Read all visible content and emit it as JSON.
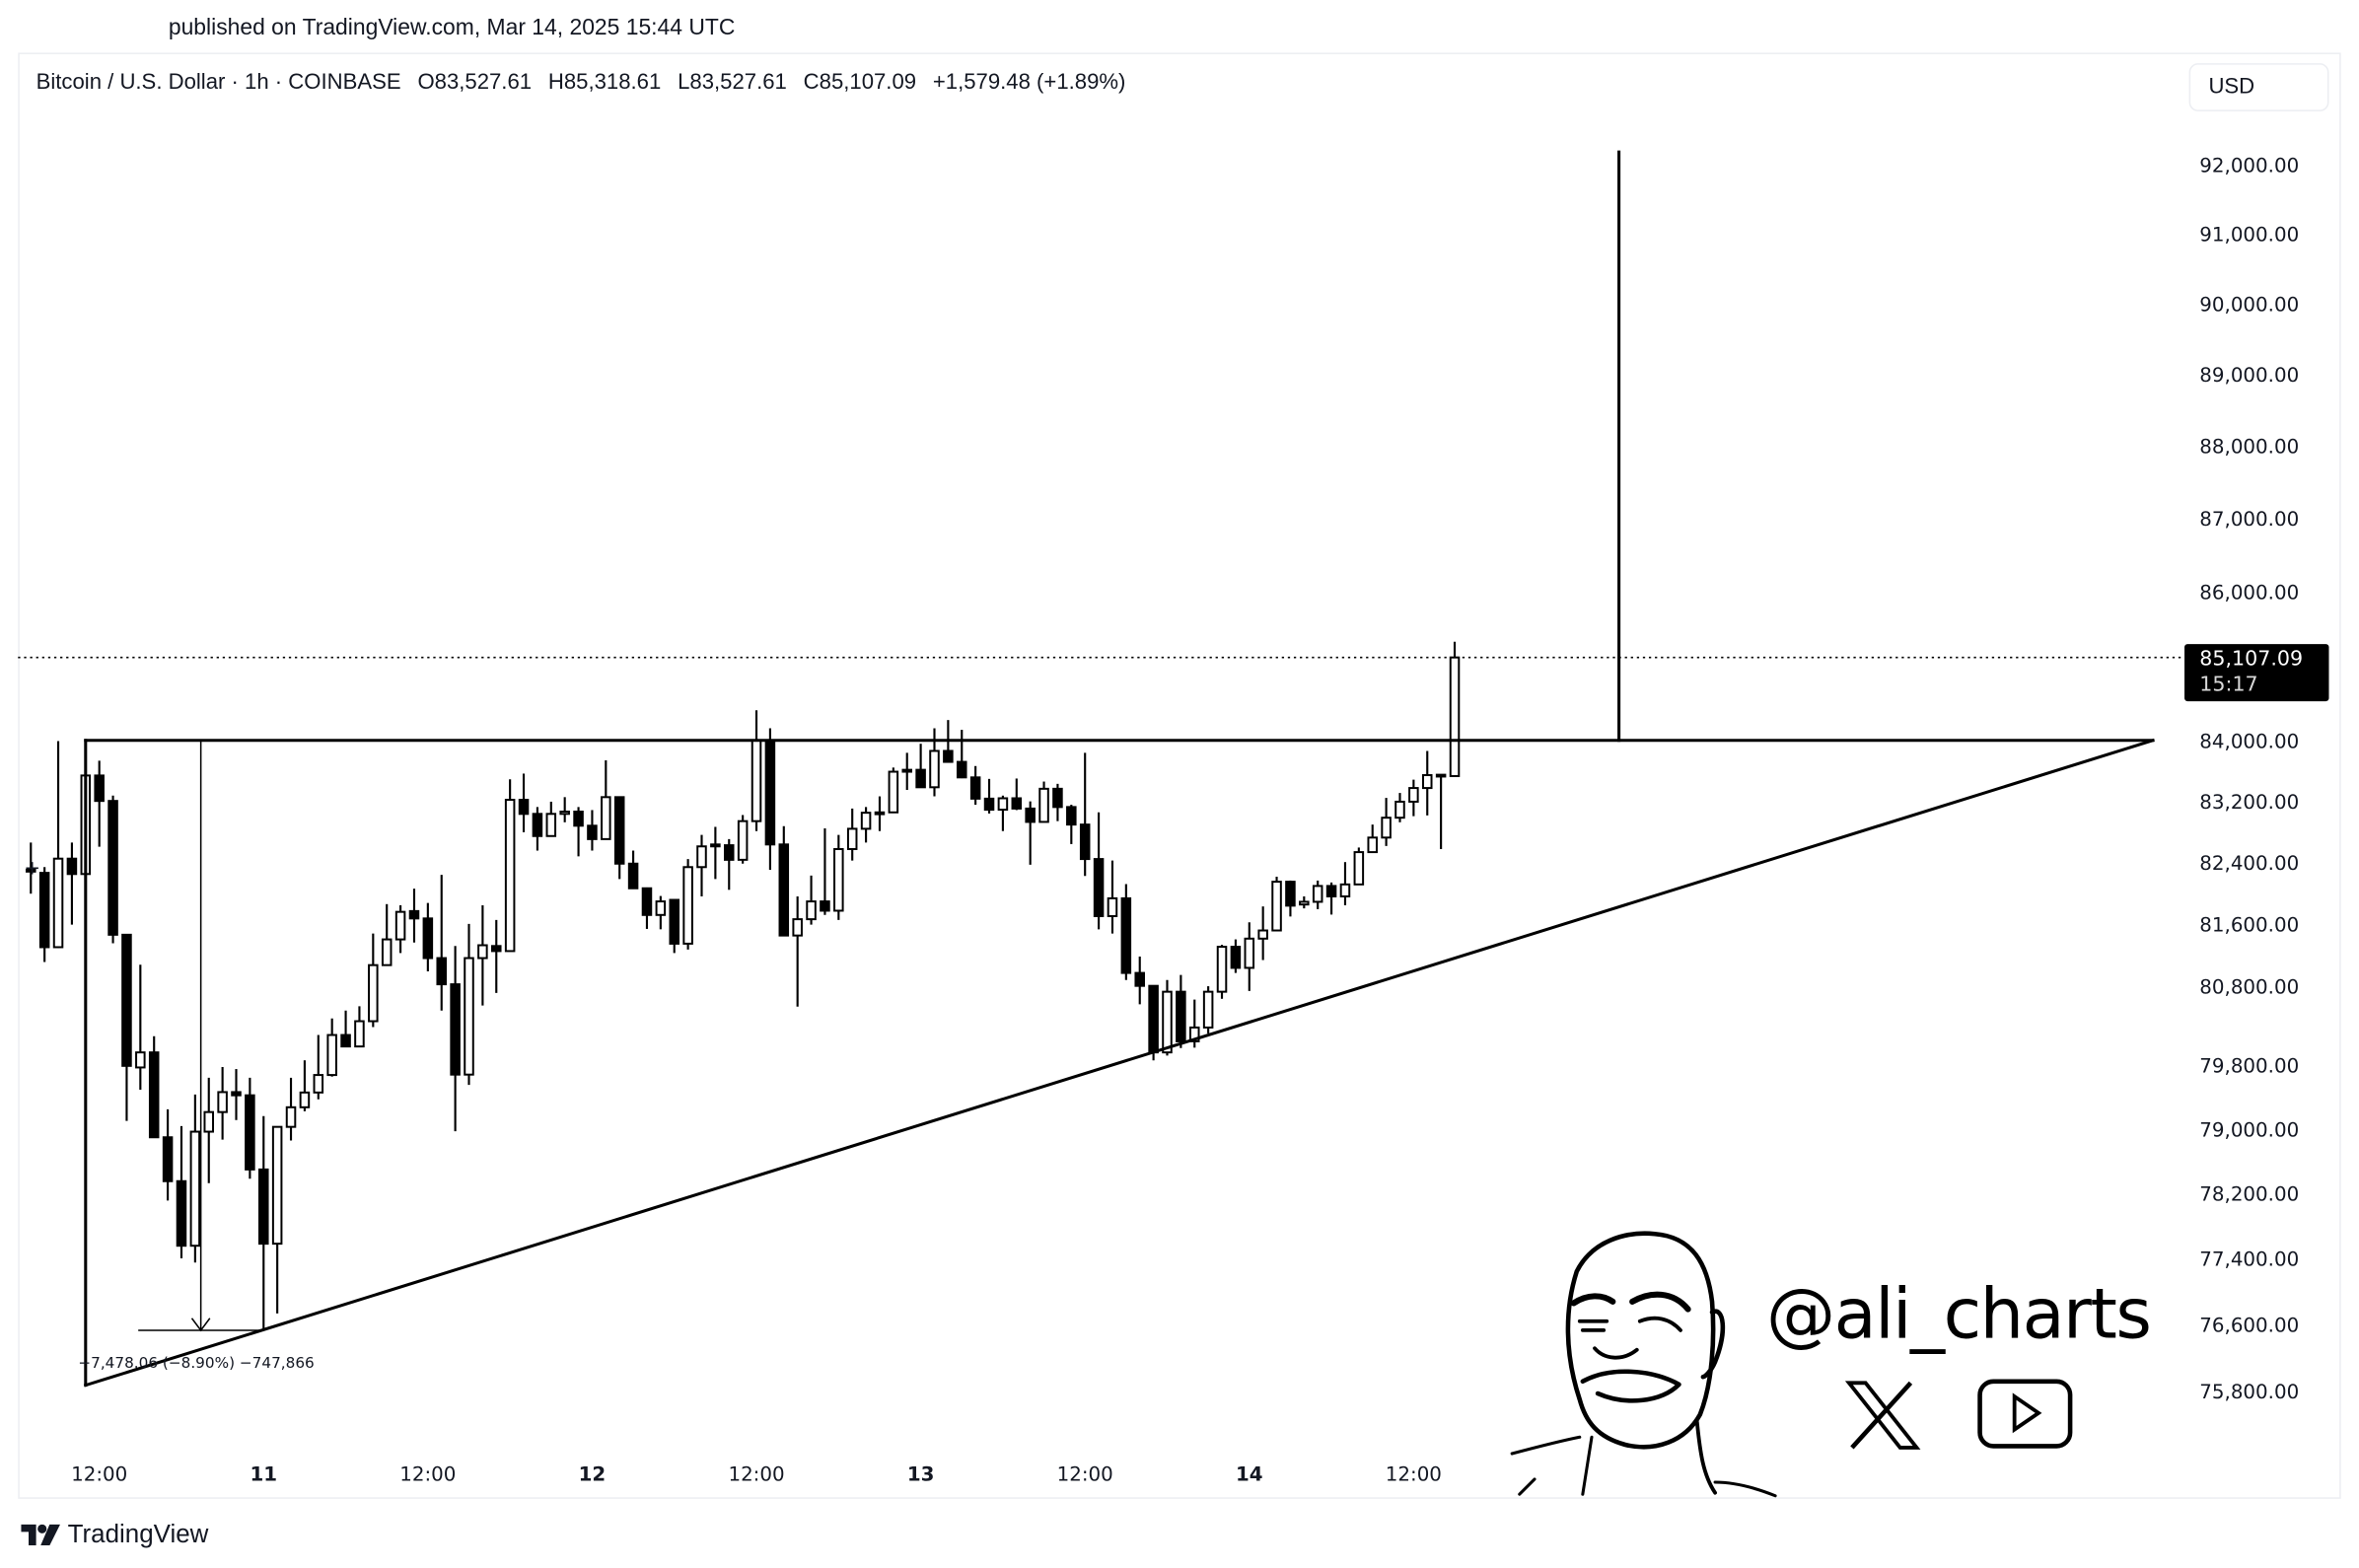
{
  "published": "published on TradingView.com, Mar 14, 2025 15:44 UTC",
  "legend": {
    "symbol": "Bitcoin / U.S. Dollar · 1h · COINBASE",
    "open": "O83,527.61",
    "high": "H85,318.61",
    "low": "L83,527.61",
    "close": "C85,107.09",
    "change": "+1,579.48 (+1.89%)"
  },
  "currency_button": "USD",
  "last_price": {
    "value": "85,107.09",
    "countdown": "15:17"
  },
  "measure_label": "−7,478.06 (−8.90%) −747,866",
  "watermark": {
    "handle": "@ali_charts",
    "icons": [
      "cartoon-face",
      "x-logo-icon",
      "youtube-play-icon"
    ]
  },
  "footer_logo": "TradingView",
  "chart_data": {
    "type": "candlestick",
    "interval": "1h",
    "y_scale": "log",
    "ylim": [
      74500,
      93600
    ],
    "xlim": [
      "Mar 10 06:00",
      "Mar 16 20:00"
    ],
    "grid": false,
    "colors": {
      "up_fill": "#ffffff",
      "down_fill": "#000000",
      "wick": "#000000",
      "drawings": "#000000",
      "last_price_label": "#000000"
    },
    "y_ticks": [
      92000,
      91000,
      90000,
      89000,
      88000,
      87000,
      86000,
      84000,
      83200,
      82400,
      81600,
      80800,
      79800,
      79000,
      78200,
      77400,
      76600,
      75800
    ],
    "y_tick_labels": [
      "92,000.00",
      "91,000.00",
      "90,000.00",
      "89,000.00",
      "88,000.00",
      "87,000.00",
      "86,000.00",
      "84,000.00",
      "83,200.00",
      "82,400.00",
      "81,600.00",
      "80,800.00",
      "79,800.00",
      "79,000.00",
      "78,200.00",
      "77,400.00",
      "76,600.00",
      "75,800.00"
    ],
    "x_ticks": [
      {
        "t": "Mar 10 12:00",
        "label": "12:00",
        "day": false
      },
      {
        "t": "Mar 11 00:00",
        "label": "11",
        "day": true
      },
      {
        "t": "Mar 11 12:00",
        "label": "12:00",
        "day": false
      },
      {
        "t": "Mar 12 00:00",
        "label": "12",
        "day": true
      },
      {
        "t": "Mar 12 12:00",
        "label": "12:00",
        "day": false
      },
      {
        "t": "Mar 13 00:00",
        "label": "13",
        "day": true
      },
      {
        "t": "Mar 13 12:00",
        "label": "12:00",
        "day": false
      },
      {
        "t": "Mar 14 00:00",
        "label": "14",
        "day": true
      },
      {
        "t": "Mar 14 12:00",
        "label": "12:00",
        "day": false
      }
    ],
    "first_bar_time": "Mar 10 07:00",
    "candles_ohlc": [
      [
        82280,
        82655,
        81990,
        82300
      ],
      [
        82260,
        82335,
        81110,
        81300
      ],
      [
        81300,
        83990,
        81290,
        82445
      ],
      [
        82445,
        82655,
        81590,
        82245
      ],
      [
        82245,
        83535,
        82245,
        83535
      ],
      [
        83535,
        83730,
        82600,
        83200
      ],
      [
        83200,
        83270,
        81350,
        81460
      ],
      [
        81460,
        81460,
        79100,
        79790
      ],
      [
        79770,
        81075,
        79490,
        79960
      ],
      [
        79960,
        80165,
        78895,
        78895
      ],
      [
        78895,
        79245,
        78110,
        78350
      ],
      [
        78350,
        79035,
        77400,
        77555
      ],
      [
        77555,
        79430,
        77350,
        78965
      ],
      [
        78965,
        79640,
        78325,
        79210
      ],
      [
        79210,
        79775,
        78865,
        79460
      ],
      [
        79460,
        79750,
        79110,
        79420
      ],
      [
        79420,
        79640,
        78380,
        78495
      ],
      [
        78495,
        79160,
        76550,
        77580
      ],
      [
        77580,
        79025,
        76730,
        79025
      ],
      [
        79025,
        79640,
        78855,
        79270
      ],
      [
        79270,
        79860,
        79220,
        79455
      ],
      [
        79455,
        80180,
        79370,
        79675
      ],
      [
        79675,
        80390,
        79655,
        80180
      ],
      [
        80180,
        80490,
        80035,
        80035
      ],
      [
        80035,
        80545,
        80030,
        80355
      ],
      [
        80355,
        81475,
        80280,
        81070
      ],
      [
        81070,
        81855,
        81070,
        81400
      ],
      [
        81400,
        81840,
        81225,
        81755
      ],
      [
        81765,
        82055,
        81360,
        81670
      ],
      [
        81670,
        81870,
        80990,
        81160
      ],
      [
        81160,
        82235,
        80490,
        80825
      ],
      [
        80825,
        81315,
        78970,
        79680
      ],
      [
        79680,
        81600,
        79550,
        81160
      ],
      [
        81160,
        81840,
        80555,
        81325
      ],
      [
        81315,
        81650,
        80715,
        81250
      ],
      [
        81250,
        83485,
        81250,
        83215
      ],
      [
        83215,
        83560,
        82790,
        83030
      ],
      [
        83030,
        83120,
        82550,
        82740
      ],
      [
        82740,
        83190,
        82740,
        83030
      ],
      [
        83030,
        83250,
        82920,
        83060
      ],
      [
        83060,
        83120,
        82475,
        82875
      ],
      [
        82875,
        83080,
        82550,
        82700
      ],
      [
        82700,
        83735,
        82700,
        83250
      ],
      [
        83250,
        83260,
        82180,
        82380
      ],
      [
        82380,
        82550,
        82050,
        82060
      ],
      [
        82060,
        82070,
        81535,
        81715
      ],
      [
        81715,
        81960,
        81530,
        81890
      ],
      [
        81910,
        81910,
        81225,
        81345
      ],
      [
        81345,
        82440,
        81270,
        82335
      ],
      [
        82335,
        82755,
        81955,
        82605
      ],
      [
        82605,
        82860,
        82180,
        82630
      ],
      [
        82620,
        82700,
        82040,
        82430
      ],
      [
        82430,
        83015,
        82380,
        82935
      ],
      [
        82935,
        84400,
        82805,
        84000
      ],
      [
        84000,
        84160,
        82300,
        82630
      ],
      [
        82630,
        82870,
        81450,
        81450
      ],
      [
        81450,
        81955,
        80540,
        81660
      ],
      [
        81660,
        82225,
        81590,
        81890
      ],
      [
        81890,
        82840,
        81715,
        81770
      ],
      [
        81770,
        82755,
        81650,
        82570
      ],
      [
        82570,
        83100,
        82420,
        82835
      ],
      [
        82835,
        83120,
        82655,
        83045
      ],
      [
        83045,
        83260,
        82805,
        83050
      ],
      [
        83050,
        83640,
        83040,
        83585
      ],
      [
        83585,
        83835,
        83345,
        83610
      ],
      [
        83610,
        83955,
        83380,
        83380
      ],
      [
        83380,
        84160,
        83260,
        83860
      ],
      [
        83860,
        84270,
        83715,
        83715
      ],
      [
        83715,
        84140,
        83500,
        83510
      ],
      [
        83510,
        83660,
        83150,
        83230
      ],
      [
        83230,
        83490,
        83035,
        83085
      ],
      [
        83085,
        83270,
        82805,
        83235
      ],
      [
        83235,
        83495,
        83080,
        83100
      ],
      [
        83100,
        83195,
        82365,
        82925
      ],
      [
        82925,
        83455,
        82925,
        83360
      ],
      [
        83360,
        83425,
        82935,
        83120
      ],
      [
        83120,
        83150,
        82635,
        82890
      ],
      [
        82890,
        83835,
        82220,
        82440
      ],
      [
        82440,
        83050,
        81530,
        81700
      ],
      [
        81700,
        82420,
        81475,
        81930
      ],
      [
        81930,
        82115,
        80880,
        80970
      ],
      [
        80970,
        81180,
        80570,
        80805
      ],
      [
        80805,
        80810,
        79860,
        79960
      ],
      [
        79960,
        80880,
        79920,
        80730
      ],
      [
        80730,
        80945,
        80015,
        80100
      ],
      [
        80100,
        80630,
        80020,
        80275
      ],
      [
        80275,
        80800,
        80200,
        80730
      ],
      [
        80730,
        81330,
        80640,
        81305
      ],
      [
        81305,
        81400,
        80970,
        81035
      ],
      [
        81035,
        81620,
        80740,
        81410
      ],
      [
        81410,
        81825,
        81135,
        81515
      ],
      [
        81515,
        82210,
        81515,
        82145
      ],
      [
        82145,
        82160,
        81695,
        81835
      ],
      [
        81850,
        81955,
        81800,
        81885
      ],
      [
        81885,
        82160,
        81790,
        82090
      ],
      [
        82090,
        82135,
        81720,
        81955
      ],
      [
        81955,
        82400,
        81840,
        82110
      ],
      [
        82110,
        82590,
        82110,
        82530
      ],
      [
        82530,
        82890,
        82530,
        82720
      ],
      [
        82720,
        83240,
        82610,
        82980
      ],
      [
        82980,
        83305,
        82920,
        83190
      ],
      [
        83190,
        83480,
        83000,
        83370
      ],
      [
        83370,
        83860,
        83010,
        83540
      ],
      [
        83545,
        83545,
        82570,
        83528
      ],
      [
        83527.61,
        85318.61,
        83527.61,
        85107.09
      ]
    ],
    "last_price": 85107.09,
    "drawings": [
      {
        "name": "resistance-line",
        "points": [
          [
            "Mar 10 11:00",
            84000
          ],
          [
            "Mar 16 18:00",
            84000
          ]
        ],
        "width": 2
      },
      {
        "name": "ascending-support-line",
        "points": [
          [
            "Mar 10 11:00",
            75865
          ],
          [
            "Mar 16 18:00",
            84000
          ]
        ],
        "width": 2
      },
      {
        "name": "triangle-left-edge",
        "points": [
          [
            "Mar 10 11:00",
            84000
          ],
          [
            "Mar 10 11:00",
            75865
          ]
        ],
        "width": 2
      },
      {
        "name": "breakout-target-line",
        "points": [
          [
            "Mar 15 03:00",
            84000
          ],
          [
            "Mar 15 03:00",
            92180
          ]
        ],
        "width": 2
      },
      {
        "name": "measure-vertical",
        "points": [
          [
            "Mar 10 19:25",
            84000
          ],
          [
            "Mar 10 19:25",
            76526
          ]
        ],
        "width": 1,
        "arrow": true
      },
      {
        "name": "measure-horizontal",
        "points": [
          [
            "Mar 10 14:54",
            76526
          ],
          [
            "Mar 11 00:00",
            76526
          ]
        ],
        "width": 1
      }
    ]
  }
}
